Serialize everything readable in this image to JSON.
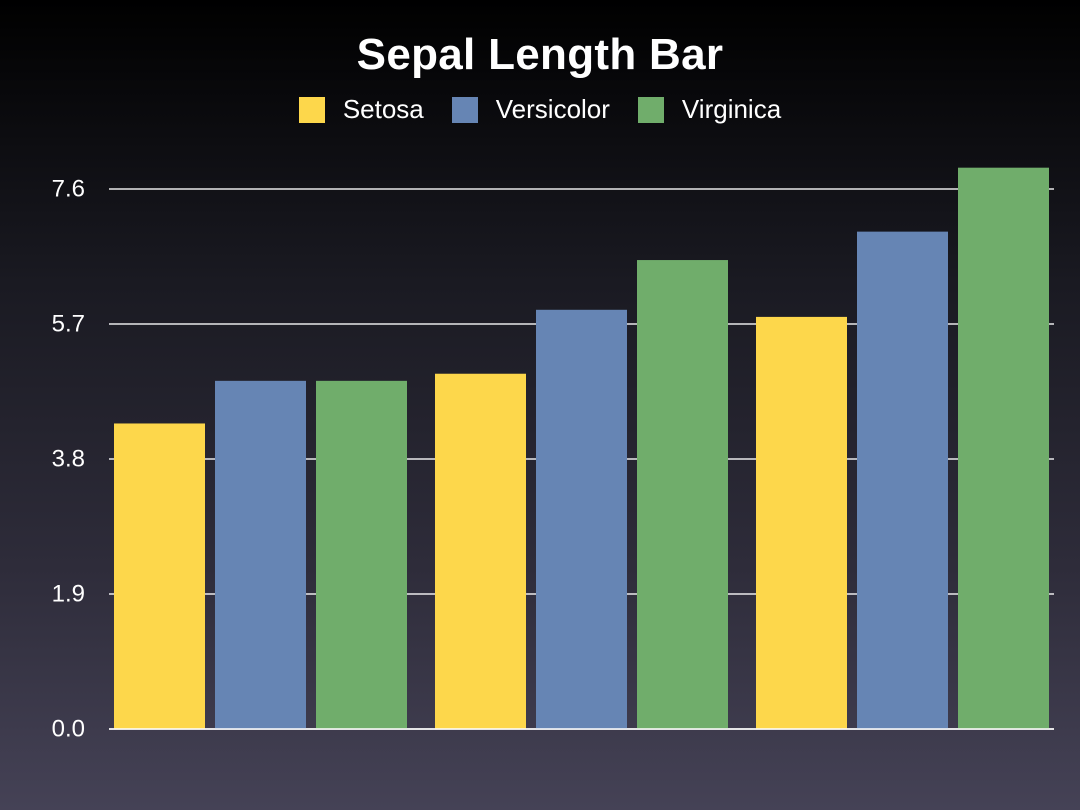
{
  "chart_data": {
    "type": "bar",
    "title": "Sepal Length Bar",
    "xlabel": "",
    "ylabel": "",
    "categories": [
      "",
      "",
      ""
    ],
    "series": [
      {
        "name": "Setosa",
        "color": "#fdd74b",
        "values": [
          4.3,
          5.0,
          5.8
        ]
      },
      {
        "name": "Versicolor",
        "color": "#6685b4",
        "values": [
          4.9,
          5.9,
          7.0
        ]
      },
      {
        "name": "Virginica",
        "color": "#70ad6b",
        "values": [
          4.9,
          6.6,
          7.9
        ]
      }
    ],
    "yticks": [
      "0.0",
      "1.9",
      "3.8",
      "5.7",
      "7.6"
    ],
    "ytick_values": [
      0,
      1.9,
      3.8,
      5.7,
      7.6
    ],
    "ylim": [
      0,
      7.6
    ],
    "grid": true,
    "legend_position": "top-center"
  }
}
